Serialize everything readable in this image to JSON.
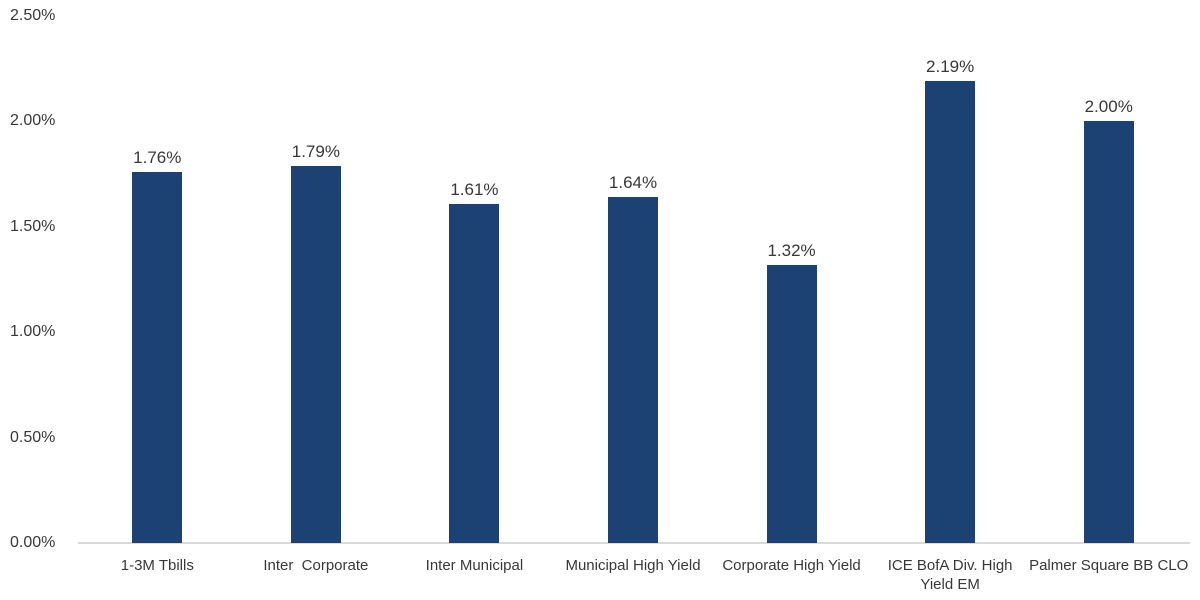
{
  "chart_data": {
    "type": "bar",
    "title": "",
    "xlabel": "",
    "ylabel": "",
    "categories": [
      "1-3M Tbills",
      "Inter  Corporate",
      "Inter Municipal",
      "Municipal High Yield",
      "Corporate High Yield",
      "ICE BofA Div. High\nYield EM",
      "Palmer Square BB CLO"
    ],
    "values": [
      1.76,
      1.79,
      1.61,
      1.64,
      1.32,
      2.19,
      2.0
    ],
    "value_labels": [
      "1.76%",
      "1.79%",
      "1.61%",
      "1.64%",
      "1.32%",
      "2.19%",
      "2.00%"
    ],
    "y_ticks": [
      "0.00%",
      "0.50%",
      "1.00%",
      "1.50%",
      "2.00%",
      "2.50%"
    ],
    "y_tick_values": [
      0,
      0.5,
      1.0,
      1.5,
      2.0,
      2.5
    ],
    "ylim": [
      0,
      2.5
    ],
    "grid": false,
    "legend": false,
    "colors": {
      "bar_fill": "#1b4272",
      "axis_line": "#d9d9d9",
      "text": "#383838",
      "background": "#ffffff"
    }
  }
}
